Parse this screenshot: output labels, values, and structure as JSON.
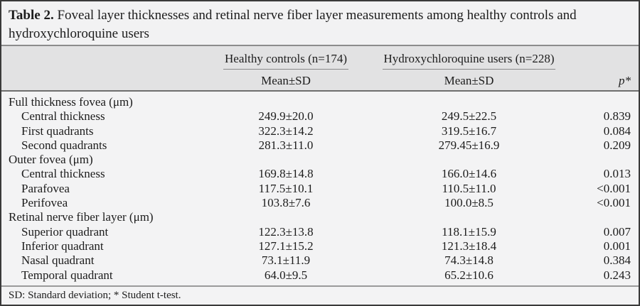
{
  "title": {
    "label": "Table 2.",
    "text": "Foveal layer thicknesses and retinal nerve fiber layer measurements among healthy controls and hydroxychloroquine users"
  },
  "header": {
    "group1": "Healthy controls (n=174)",
    "group2": "Hydroxychloroquine users (n=228)",
    "subheader1": "Mean±SD",
    "subheader2": "Mean±SD",
    "p_label": "p*"
  },
  "sections": [
    {
      "header": "Full thickness fovea (μm)",
      "rows": [
        {
          "label": "Central thickness",
          "healthy": "249.9±20.0",
          "hcq": "249.5±22.5",
          "p": "0.839"
        },
        {
          "label": "First quadrants",
          "healthy": "322.3±14.2",
          "hcq": "319.5±16.7",
          "p": "0.084"
        },
        {
          "label": "Second quadrants",
          "healthy": "281.3±11.0",
          "hcq": "279.45±16.9",
          "p": "0.209"
        }
      ]
    },
    {
      "header": "Outer fovea (μm)",
      "rows": [
        {
          "label": "Central thickness",
          "healthy": "169.8±14.8",
          "hcq": "166.0±14.6",
          "p": "0.013"
        },
        {
          "label": "Parafovea",
          "healthy": "117.5±10.1",
          "hcq": "110.5±11.0",
          "p": "<0.001"
        },
        {
          "label": "Perifovea",
          "healthy": "103.8±7.6",
          "hcq": "100.0±8.5",
          "p": "<0.001"
        }
      ]
    },
    {
      "header": "Retinal nerve fiber layer (μm)",
      "rows": [
        {
          "label": "Superior quadrant",
          "healthy": "122.3±13.8",
          "hcq": "118.1±15.9",
          "p": "0.007"
        },
        {
          "label": "Inferior quadrant",
          "healthy": "127.1±15.2",
          "hcq": "121.3±18.4",
          "p": "0.001"
        },
        {
          "label": "Nasal quadrant",
          "healthy": "73.1±11.9",
          "hcq": "74.3±14.8",
          "p": "0.384"
        },
        {
          "label": "Temporal quadrant",
          "healthy": "64.0±9.5",
          "hcq": "65.2±10.6",
          "p": "0.243"
        }
      ]
    }
  ],
  "footnote": "SD: Standard deviation; * Student t-test.",
  "colors": {
    "border": "#3a3a3a",
    "header_band": "#e2e2e3",
    "background": "#f3f3f4",
    "rule_light": "#8c8c8c",
    "rule_dark": "#6e6e6e",
    "text": "#1c1c1c"
  }
}
